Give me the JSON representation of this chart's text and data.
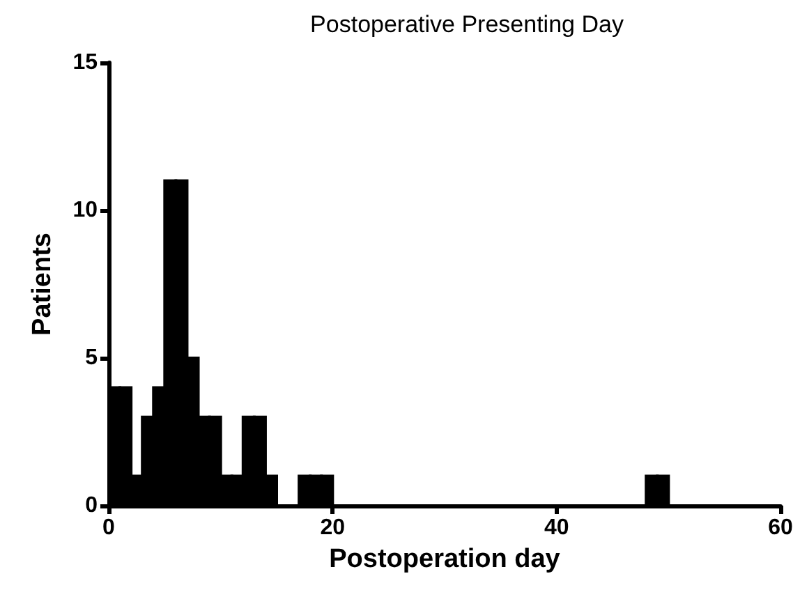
{
  "chart_data": {
    "type": "histogram",
    "title": "Postoperative Presenting Day",
    "xlabel": "Postoperation day",
    "ylabel": "Patients",
    "bins": [
      0,
      1,
      2,
      3,
      4,
      5,
      6,
      7,
      8,
      9,
      10,
      11,
      12,
      13,
      14,
      15,
      16,
      17,
      18,
      19,
      20,
      21,
      22,
      23,
      24,
      25,
      26,
      27,
      28,
      29,
      30,
      31,
      32,
      33,
      34,
      35,
      36,
      37,
      38,
      39,
      40,
      41,
      42,
      43,
      44,
      45,
      46,
      47,
      48,
      49,
      50,
      51,
      52,
      53,
      54,
      55,
      56,
      57,
      58,
      59,
      60
    ],
    "values": [
      4,
      4,
      1,
      3,
      4,
      11,
      11,
      5,
      3,
      3,
      1,
      1,
      3,
      3,
      1,
      0,
      0,
      1,
      1,
      1,
      0,
      0,
      0,
      0,
      0,
      0,
      0,
      0,
      0,
      0,
      0,
      0,
      0,
      0,
      0,
      0,
      0,
      0,
      0,
      0,
      0,
      0,
      0,
      0,
      0,
      0,
      0,
      0,
      1,
      1,
      0,
      0,
      0,
      0,
      0,
      0,
      0,
      0,
      0,
      0
    ],
    "color": "#000000",
    "xlim": [
      0,
      60
    ],
    "xticks": [
      0,
      20,
      40,
      60
    ],
    "ylim": [
      0,
      15
    ],
    "yticks": [
      0,
      5,
      10,
      15
    ],
    "grid": false
  }
}
